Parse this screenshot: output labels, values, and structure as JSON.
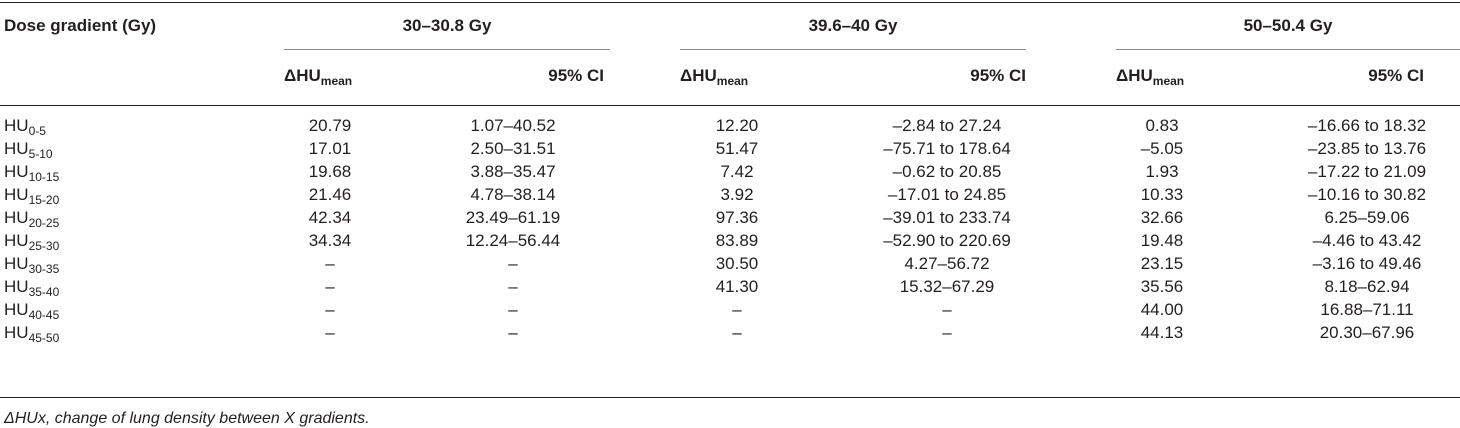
{
  "header": {
    "row_label": "Dose gradient (Gy)",
    "groups": [
      "30–30.8 Gy",
      "39.6–40 Gy",
      "50–50.4 Gy"
    ],
    "sub_mean_main": "ΔHU",
    "sub_mean_sub": "mean",
    "sub_ci": "95% CI"
  },
  "rows": [
    {
      "label_main": "HU",
      "label_sub": "0-5",
      "v": [
        "20.79",
        "1.07–40.52",
        "12.20",
        "–2.84 to 27.24",
        "0.83",
        "–16.66 to 18.32"
      ]
    },
    {
      "label_main": "HU",
      "label_sub": "5-10",
      "v": [
        "17.01",
        "2.50–31.51",
        "51.47",
        "–75.71 to 178.64",
        "–5.05",
        "–23.85 to 13.76"
      ]
    },
    {
      "label_main": "HU",
      "label_sub": "10-15",
      "v": [
        "19.68",
        "3.88–35.47",
        "7.42",
        "–0.62 to 20.85",
        "1.93",
        "–17.22 to 21.09"
      ]
    },
    {
      "label_main": "HU",
      "label_sub": "15-20",
      "v": [
        "21.46",
        "4.78–38.14",
        "3.92",
        "–17.01 to 24.85",
        "10.33",
        "–10.16 to 30.82"
      ]
    },
    {
      "label_main": "HU",
      "label_sub": "20-25",
      "v": [
        "42.34",
        "23.49–61.19",
        "97.36",
        "–39.01 to 233.74",
        "32.66",
        "6.25–59.06"
      ]
    },
    {
      "label_main": "HU",
      "label_sub": "25-30",
      "v": [
        "34.34",
        "12.24–56.44",
        "83.89",
        "–52.90 to 220.69",
        "19.48",
        "–4.46 to 43.42"
      ]
    },
    {
      "label_main": "HU",
      "label_sub": "30-35",
      "v": [
        "–",
        "–",
        "30.50",
        "4.27–56.72",
        "23.15",
        "–3.16 to 49.46"
      ]
    },
    {
      "label_main": "HU",
      "label_sub": "35-40",
      "v": [
        "–",
        "–",
        "41.30",
        "15.32–67.29",
        "35.56",
        "8.18–62.94"
      ]
    },
    {
      "label_main": "HU",
      "label_sub": "40-45",
      "v": [
        "–",
        "–",
        "–",
        "–",
        "44.00",
        "16.88–71.11"
      ]
    },
    {
      "label_main": "HU",
      "label_sub": "45-50",
      "v": [
        "–",
        "–",
        "–",
        "–",
        "44.13",
        "20.30–67.96"
      ]
    }
  ],
  "footnote": "ΔHUx, change of lung density between X gradients."
}
